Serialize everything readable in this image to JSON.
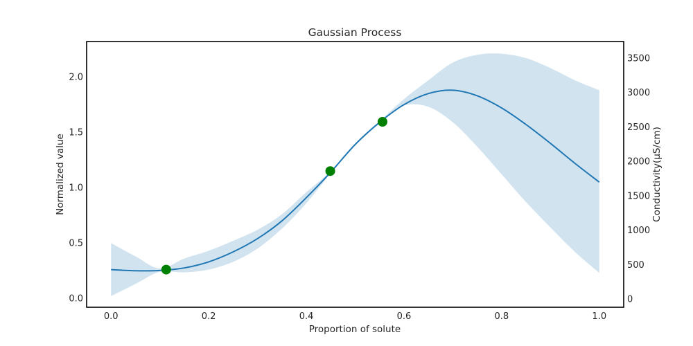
{
  "chart_data": {
    "type": "line",
    "title": "Gaussian Process",
    "xlabel": "Proportion of solute",
    "ylabel": "Normalized value",
    "ylabel_right": "Conductivity(μS/cm)",
    "xlim": [
      -0.05,
      1.05
    ],
    "ylim": [
      -0.08,
      2.32
    ],
    "ylim_right": [
      -120,
      3740
    ],
    "xticks": [
      "0.0",
      "0.2",
      "0.4",
      "0.6",
      "0.8",
      "1.0"
    ],
    "yticks": [
      "0.0",
      "0.5",
      "1.0",
      "1.5",
      "2.0"
    ],
    "yticks_right": [
      "0",
      "500",
      "1000",
      "1500",
      "2000",
      "2500",
      "3000",
      "3500"
    ],
    "grid": false,
    "series": [
      {
        "kind": "mean-line",
        "x": [
          0.0,
          0.05,
          0.1,
          0.15,
          0.2,
          0.25,
          0.3,
          0.35,
          0.4,
          0.45,
          0.5,
          0.55,
          0.6,
          0.65,
          0.7,
          0.75,
          0.8,
          0.85,
          0.9,
          0.95,
          1.0
        ],
        "y": [
          0.26,
          0.25,
          0.252,
          0.275,
          0.33,
          0.42,
          0.54,
          0.7,
          0.91,
          1.14,
          1.39,
          1.59,
          1.75,
          1.85,
          1.88,
          1.83,
          1.72,
          1.57,
          1.4,
          1.22,
          1.05
        ]
      },
      {
        "kind": "confidence-band",
        "x": [
          0.0,
          0.05,
          0.1,
          0.15,
          0.2,
          0.25,
          0.3,
          0.35,
          0.4,
          0.45,
          0.5,
          0.55,
          0.6,
          0.65,
          0.7,
          0.75,
          0.8,
          0.85,
          0.9,
          0.95,
          1.0
        ],
        "lower": [
          0.02,
          0.13,
          0.24,
          0.235,
          0.26,
          0.33,
          0.45,
          0.63,
          0.86,
          1.13,
          1.38,
          1.58,
          1.74,
          1.73,
          1.59,
          1.37,
          1.12,
          0.87,
          0.64,
          0.42,
          0.23
        ],
        "upper": [
          0.5,
          0.38,
          0.27,
          0.36,
          0.43,
          0.52,
          0.62,
          0.76,
          0.96,
          1.15,
          1.4,
          1.6,
          1.8,
          1.97,
          2.13,
          2.2,
          2.21,
          2.17,
          2.08,
          1.97,
          1.88
        ]
      },
      {
        "kind": "observations",
        "x": [
          0.113,
          0.449,
          0.556
        ],
        "y": [
          0.26,
          1.15,
          1.595
        ]
      }
    ],
    "colors": {
      "line": "#1f77b4",
      "band": "#d2e3f0",
      "points": "#008000",
      "axes": "#000000",
      "text": "#262626"
    }
  }
}
